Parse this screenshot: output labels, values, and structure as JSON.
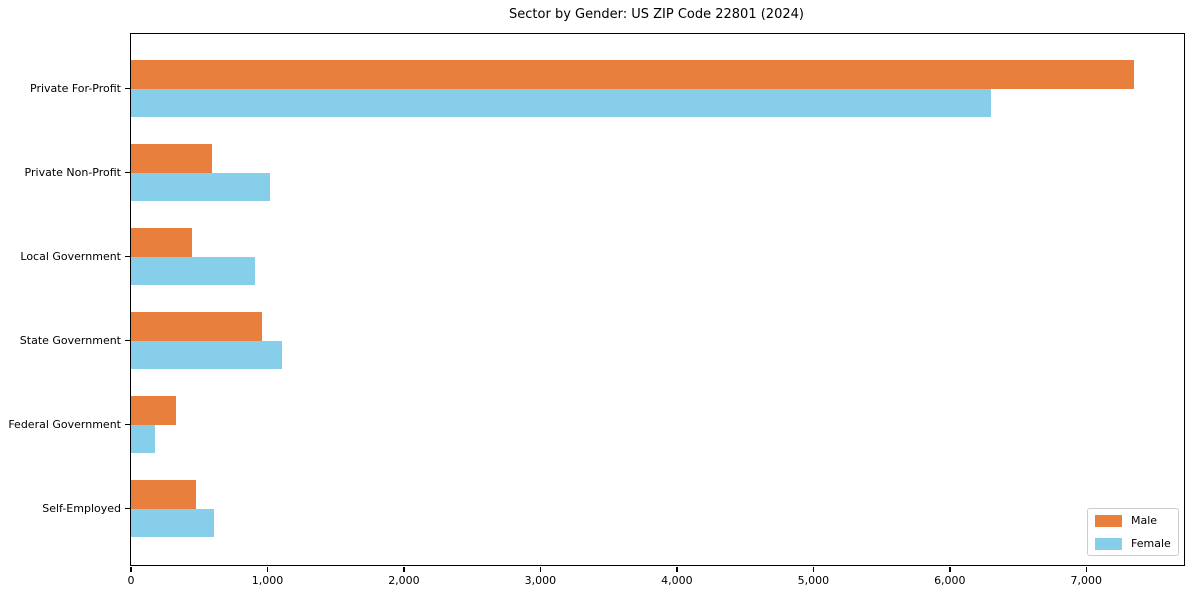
{
  "chart_data": {
    "type": "bar",
    "orientation": "horizontal",
    "title": "Sector by Gender: US ZIP Code 22801 (2024)",
    "categories": [
      "Private For-Profit",
      "Private Non-Profit",
      "Local Government",
      "State Government",
      "Federal Government",
      "Self-Employed"
    ],
    "series": [
      {
        "name": "Male",
        "color": "#e87f3d",
        "values": [
          7350,
          590,
          445,
          960,
          330,
          475
        ]
      },
      {
        "name": "Female",
        "color": "#87ceeb",
        "values": [
          6300,
          1015,
          910,
          1105,
          175,
          605
        ]
      }
    ],
    "xlabel": "",
    "ylabel": "",
    "xlim": [
      0,
      7716
    ],
    "xticks": [
      0,
      1000,
      2000,
      3000,
      4000,
      5000,
      6000,
      7000
    ],
    "xtick_labels": [
      "0",
      "1,000",
      "2,000",
      "3,000",
      "4,000",
      "5,000",
      "6,000",
      "7,000"
    ],
    "grid": false,
    "legend_position": "lower right",
    "background_color": "#ffffff",
    "text_color": "#000000"
  }
}
